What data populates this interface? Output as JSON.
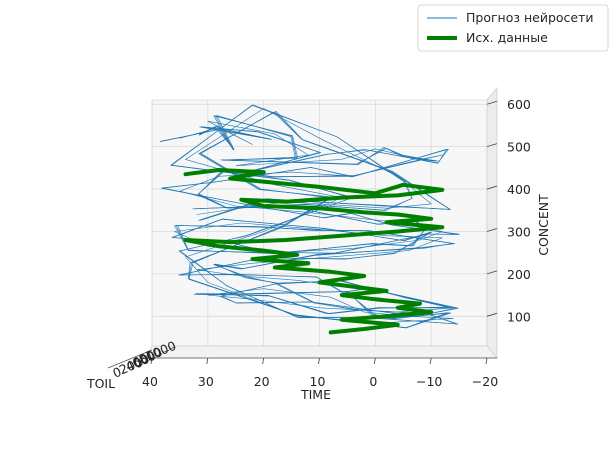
{
  "chart_data": {
    "type": "line",
    "projection": "3d",
    "xlabel": "TIME",
    "ylabel": "TOIL",
    "zlabel": "CONCENT",
    "xlim": [
      40,
      -20
    ],
    "zlim": [
      30,
      610
    ],
    "x_ticks": [
      "40",
      "30",
      "20",
      "10",
      "0",
      "−10",
      "−20"
    ],
    "z_ticks": [
      "100",
      "200",
      "300",
      "400",
      "500",
      "600"
    ],
    "y_ticks": [
      "0",
      "200",
      "400",
      "600",
      "800",
      "1000"
    ],
    "grid": true,
    "legend_position": "top-right",
    "series": [
      {
        "name": "Прогноз нейросети",
        "color": "#1f77b4",
        "points": [
          [
            35,
            520
          ],
          [
            28,
            545
          ],
          [
            22,
            505
          ],
          [
            30,
            560
          ],
          [
            18,
            530
          ],
          [
            12,
            480
          ],
          [
            25,
            455
          ],
          [
            6,
            470
          ],
          [
            0,
            495
          ],
          [
            -8,
            470
          ],
          [
            -12,
            480
          ],
          [
            -5,
            460
          ],
          [
            4,
            430
          ],
          [
            15,
            440
          ],
          [
            28,
            430
          ],
          [
            35,
            395
          ],
          [
            25,
            360
          ],
          [
            12,
            345
          ],
          [
            2,
            330
          ],
          [
            -5,
            320
          ],
          [
            -12,
            300
          ],
          [
            -8,
            280
          ],
          [
            4,
            260
          ],
          [
            18,
            250
          ],
          [
            30,
            265
          ],
          [
            36,
            300
          ],
          [
            24,
            320
          ],
          [
            10,
            305
          ],
          [
            -2,
            290
          ],
          [
            -12,
            285
          ],
          [
            -6,
            255
          ],
          [
            8,
            240
          ],
          [
            22,
            225
          ],
          [
            32,
            210
          ],
          [
            24,
            195
          ],
          [
            14,
            185
          ],
          [
            6,
            170
          ],
          [
            -2,
            155
          ],
          [
            -14,
            120
          ],
          [
            -4,
            110
          ],
          [
            10,
            120
          ],
          [
            22,
            140
          ],
          [
            30,
            150
          ],
          [
            20,
            165
          ],
          [
            8,
            145
          ],
          [
            2,
            110
          ],
          [
            -6,
            100
          ],
          [
            -14,
            95
          ],
          [
            -2,
            85
          ],
          [
            14,
            100
          ],
          [
            30,
            180
          ],
          [
            34,
            240
          ],
          [
            20,
            300
          ],
          [
            6,
            380
          ],
          [
            18,
            410
          ],
          [
            34,
            470
          ],
          [
            20,
            590
          ],
          [
            10,
            520
          ],
          [
            -4,
            430
          ],
          [
            -10,
            365
          ],
          [
            -2,
            355
          ],
          [
            16,
            370
          ],
          [
            32,
            340
          ]
        ]
      },
      {
        "name": "Исх. данные",
        "color": "#008000",
        "points": [
          [
            34,
            435
          ],
          [
            28,
            445
          ],
          [
            20,
            440
          ],
          [
            26,
            425
          ],
          [
            18,
            415
          ],
          [
            10,
            405
          ],
          [
            0,
            390
          ],
          [
            -5,
            410
          ],
          [
            -12,
            398
          ],
          [
            -4,
            385
          ],
          [
            6,
            380
          ],
          [
            16,
            370
          ],
          [
            24,
            375
          ],
          [
            20,
            360
          ],
          [
            10,
            355
          ],
          [
            2,
            345
          ],
          [
            -4,
            340
          ],
          [
            -10,
            330
          ],
          [
            -2,
            322
          ],
          [
            -12,
            310
          ],
          [
            -4,
            300
          ],
          [
            6,
            290
          ],
          [
            16,
            280
          ],
          [
            26,
            275
          ],
          [
            34,
            280
          ],
          [
            28,
            265
          ],
          [
            20,
            255
          ],
          [
            14,
            245
          ],
          [
            22,
            235
          ],
          [
            12,
            225
          ],
          [
            18,
            215
          ],
          [
            8,
            205
          ],
          [
            2,
            195
          ],
          [
            10,
            180
          ],
          [
            4,
            170
          ],
          [
            -2,
            160
          ],
          [
            6,
            150
          ],
          [
            0,
            140
          ],
          [
            -8,
            130
          ],
          [
            -4,
            120
          ],
          [
            -10,
            110
          ],
          [
            -2,
            100
          ],
          [
            6,
            92
          ],
          [
            -4,
            80
          ],
          [
            2,
            70
          ],
          [
            8,
            62
          ]
        ]
      }
    ]
  }
}
